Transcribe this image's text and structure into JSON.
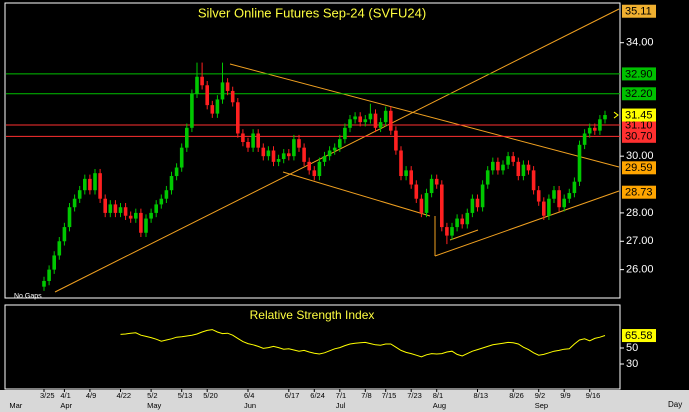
{
  "chart_data": {
    "type": "candlestick",
    "title": "Silver Online Futures Sep-24 (SVFU24)",
    "annotation": "No Gaps",
    "x_label": "Day",
    "categories": [
      null,
      null,
      null,
      null,
      null,
      null,
      "3/25",
      null,
      null,
      null,
      "4/1",
      null,
      null,
      null,
      null,
      "4/9",
      null,
      null,
      null,
      null,
      null,
      "4/22",
      null,
      null,
      null,
      null,
      null,
      "5/2",
      null,
      null,
      null,
      null,
      null,
      "5/13",
      null,
      null,
      null,
      null,
      "5/20",
      null,
      null,
      null,
      null,
      null,
      null,
      null,
      "6/4",
      null,
      null,
      null,
      null,
      null,
      null,
      null,
      "6/17",
      null,
      null,
      null,
      null,
      "6/24",
      null,
      null,
      null,
      null,
      "7/1",
      null,
      null,
      null,
      null,
      "7/8",
      null,
      null,
      null,
      "7/15",
      null,
      null,
      null,
      null,
      "7/23",
      null,
      null,
      null,
      null,
      "8/1",
      null,
      null,
      null,
      null,
      null,
      null,
      null,
      "8/13",
      null,
      null,
      null,
      null,
      null,
      null,
      "8/26",
      null,
      null,
      null,
      null,
      "9/2",
      null,
      null,
      null,
      null,
      "9/9",
      null,
      null,
      null,
      null,
      "9/16",
      null,
      null,
      null
    ],
    "months": [
      "Mar",
      null,
      null,
      null,
      null,
      null,
      null,
      null,
      null,
      null,
      "Apr",
      null,
      null,
      null,
      null,
      null,
      null,
      null,
      null,
      null,
      null,
      null,
      null,
      null,
      null,
      null,
      null,
      "May",
      null,
      null,
      null,
      null,
      null,
      null,
      null,
      null,
      null,
      null,
      null,
      null,
      null,
      null,
      null,
      null,
      null,
      null,
      "Jun",
      null,
      null,
      null,
      null,
      null,
      null,
      null,
      null,
      null,
      null,
      null,
      null,
      null,
      null,
      null,
      null,
      null,
      "Jul",
      null,
      null,
      null,
      null,
      null,
      null,
      null,
      null,
      null,
      null,
      null,
      null,
      null,
      null,
      null,
      null,
      null,
      null,
      "Aug",
      null,
      null,
      null,
      null,
      null,
      null,
      null,
      null,
      null,
      null,
      null,
      null,
      null,
      null,
      null,
      null,
      null,
      null,
      null,
      "Sep",
      null,
      null,
      null,
      null,
      null,
      null,
      null,
      null,
      null,
      null,
      null,
      null,
      null
    ],
    "open": [
      null,
      null,
      null,
      null,
      null,
      null,
      25.4,
      25.6,
      26.0,
      26.5,
      27.0,
      27.5,
      28.2,
      28.5,
      28.8,
      29.2,
      28.8,
      29.4,
      28.5,
      28.0,
      28.3,
      28.0,
      28.2,
      27.9,
      27.8,
      28.0,
      27.3,
      27.8,
      28.0,
      28.3,
      28.5,
      28.8,
      29.3,
      29.6,
      30.3,
      31.0,
      32.2,
      32.8,
      32.5,
      31.8,
      31.5,
      32.0,
      32.6,
      32.3,
      31.9,
      30.8,
      30.5,
      30.3,
      30.8,
      30.3,
      30.0,
      30.2,
      29.8,
      29.9,
      30.1,
      30.0,
      30.6,
      30.3,
      29.8,
      29.5,
      29.3,
      29.8,
      30.0,
      30.2,
      30.3,
      30.6,
      31.0,
      31.3,
      31.4,
      31.2,
      31.3,
      31.5,
      31.0,
      31.2,
      31.6,
      30.9,
      30.2,
      29.3,
      29.5,
      29.0,
      28.5,
      28.0,
      28.7,
      29.2,
      29.0,
      27.5,
      27.2,
      27.5,
      27.8,
      27.6,
      28.0,
      28.5,
      28.2,
      29.0,
      29.5,
      29.8,
      29.5,
      29.7,
      30.0,
      29.8,
      29.3,
      29.7,
      29.5,
      28.8,
      28.4,
      27.9,
      28.5,
      28.8,
      28.2,
      28.5,
      28.7,
      29.1,
      30.4,
      30.8,
      31.0,
      30.9,
      31.3
    ],
    "high": [
      null,
      null,
      null,
      null,
      null,
      null,
      25.75,
      26.15,
      26.65,
      27.15,
      27.65,
      28.35,
      28.65,
      28.95,
      29.35,
      29.35,
      29.55,
      29.55,
      28.65,
      28.45,
      28.45,
      28.35,
      28.35,
      28.05,
      28.15,
      28.15,
      27.95,
      28.15,
      28.45,
      28.65,
      28.95,
      29.45,
      29.75,
      30.45,
      31.15,
      32.35,
      33.3,
      33.3,
      32.65,
      31.95,
      32.15,
      33.3,
      32.75,
      32.45,
      32.05,
      30.95,
      30.65,
      30.95,
      30.95,
      30.45,
      30.35,
      30.35,
      30.05,
      30.25,
      30.25,
      30.75,
      30.75,
      30.45,
      29.95,
      29.65,
      29.95,
      30.15,
      30.35,
      30.45,
      30.75,
      31.15,
      31.45,
      31.55,
      31.55,
      31.45,
      31.85,
      31.65,
      31.35,
      31.75,
      31.75,
      31.05,
      30.35,
      29.65,
      29.65,
      29.15,
      28.65,
      28.85,
      29.35,
      29.35,
      29.15,
      27.65,
      27.65,
      27.95,
      27.95,
      28.15,
      28.65,
      28.65,
      29.15,
      29.65,
      29.95,
      29.95,
      29.85,
      30.15,
      30.15,
      29.95,
      29.85,
      29.85,
      29.65,
      28.95,
      28.55,
      28.65,
      28.95,
      28.95,
      28.65,
      28.85,
      29.25,
      30.55,
      30.95,
      31.15,
      31.15,
      31.45,
      31.6
    ],
    "low": [
      null,
      null,
      null,
      null,
      null,
      null,
      25.25,
      25.45,
      25.85,
      26.35,
      26.85,
      27.35,
      28.05,
      28.35,
      28.65,
      28.65,
      28.65,
      28.35,
      27.85,
      27.85,
      27.85,
      27.85,
      27.75,
      27.65,
      27.65,
      27.15,
      27.15,
      27.65,
      27.85,
      28.15,
      28.35,
      28.65,
      29.15,
      29.45,
      30.15,
      30.85,
      32.05,
      32.35,
      31.65,
      31.35,
      31.35,
      31.85,
      32.15,
      31.75,
      30.65,
      30.35,
      30.15,
      30.15,
      30.15,
      29.85,
      29.85,
      29.65,
      29.65,
      29.75,
      29.85,
      29.85,
      30.15,
      29.65,
      29.35,
      29.15,
      29.15,
      29.65,
      29.85,
      30.05,
      30.15,
      30.45,
      30.85,
      31.15,
      31.05,
      31.05,
      31.15,
      30.85,
      30.85,
      31.05,
      30.75,
      30.05,
      29.15,
      29.15,
      28.85,
      28.35,
      27.85,
      27.85,
      28.55,
      28.85,
      27.35,
      26.9,
      27.05,
      27.35,
      27.45,
      27.45,
      27.85,
      28.05,
      28.05,
      28.85,
      29.35,
      29.35,
      29.35,
      29.55,
      29.65,
      29.15,
      29.15,
      29.35,
      28.65,
      28.25,
      27.75,
      27.75,
      28.35,
      28.05,
      28.05,
      28.35,
      28.55,
      28.95,
      30.25,
      30.65,
      30.75,
      30.75,
      31.15
    ],
    "close": [
      null,
      null,
      null,
      null,
      null,
      null,
      25.6,
      26.0,
      26.5,
      27.0,
      27.5,
      28.2,
      28.5,
      28.8,
      29.2,
      28.8,
      29.4,
      28.5,
      28.0,
      28.3,
      28.0,
      28.2,
      27.9,
      27.8,
      28.0,
      27.3,
      27.8,
      28.0,
      28.3,
      28.5,
      28.8,
      29.3,
      29.6,
      30.3,
      31.0,
      32.2,
      32.8,
      32.5,
      31.8,
      31.5,
      32.0,
      32.6,
      32.3,
      31.9,
      30.8,
      30.5,
      30.3,
      30.8,
      30.3,
      30.0,
      30.2,
      29.8,
      29.9,
      30.1,
      30.0,
      30.6,
      30.3,
      29.8,
      29.5,
      29.3,
      29.8,
      30.0,
      30.2,
      30.3,
      30.6,
      31.0,
      31.3,
      31.4,
      31.2,
      31.3,
      31.5,
      31.0,
      31.2,
      31.6,
      30.9,
      30.2,
      29.3,
      29.5,
      29.0,
      28.5,
      28.0,
      28.7,
      29.2,
      29.0,
      27.5,
      27.2,
      27.5,
      27.8,
      27.6,
      28.0,
      28.5,
      28.2,
      29.0,
      29.5,
      29.8,
      29.5,
      29.7,
      30.0,
      29.8,
      29.3,
      29.7,
      29.5,
      28.8,
      28.4,
      27.9,
      28.5,
      28.8,
      28.2,
      28.5,
      28.7,
      29.1,
      30.4,
      30.8,
      31.0,
      30.9,
      31.3,
      31.45
    ],
    "up_color": "#00c800",
    "down_color": "#ff2020",
    "last_color": "#ffff00",
    "ylim": [
      25.0,
      35.4
    ],
    "yticks": [
      {
        "value": 26,
        "label": "26.00"
      },
      {
        "value": 27,
        "label": "27.00"
      },
      {
        "value": 28,
        "label": "28.00"
      },
      {
        "value": 30,
        "label": "30.00"
      },
      {
        "value": 34,
        "label": "34.00"
      }
    ],
    "price_labels": [
      {
        "value": 35.11,
        "label": "35.11",
        "color": "#f0b030",
        "line": false
      },
      {
        "value": 32.9,
        "label": "32.90",
        "color": "#00c000",
        "line": true
      },
      {
        "value": 32.2,
        "label": "32.20",
        "color": "#00c000",
        "line": true
      },
      {
        "value": 31.1,
        "label": "31.10",
        "color": "#ff3030",
        "line": true
      },
      {
        "value": 30.7,
        "label": "30.70",
        "color": "#ff3030",
        "line": true
      },
      {
        "value": 29.59,
        "label": "29.59",
        "color": "#ffa500",
        "line": false
      },
      {
        "value": 28.73,
        "label": "28.73",
        "color": "#ffa500",
        "line": false
      }
    ],
    "rsi": {
      "title": "Relative Strength Index",
      "color": "#ffff00",
      "ylim": [
        0,
        100
      ],
      "yticks": [
        30,
        50
      ],
      "values": [
        null,
        null,
        null,
        null,
        null,
        null,
        null,
        null,
        null,
        null,
        null,
        null,
        null,
        null,
        null,
        null,
        null,
        null,
        null,
        null,
        null,
        67,
        67.5,
        68.5,
        69,
        66,
        64.5,
        63,
        61,
        58.5,
        60,
        61.5,
        63.5,
        64,
        65,
        66,
        67.5,
        70,
        72,
        73,
        70,
        68,
        68.5,
        66,
        62,
        58,
        55.5,
        54,
        52,
        49.5,
        50.5,
        52,
        50.5,
        48.5,
        49,
        47.5,
        46,
        47,
        45,
        43.5,
        42.5,
        44,
        46.5,
        49,
        50.5,
        53,
        55,
        56,
        56.5,
        57,
        55.5,
        54,
        53.5,
        55,
        55,
        51,
        47,
        44.5,
        43,
        41,
        39,
        41.5,
        43,
        42.5,
        43,
        45,
        46,
        42,
        40,
        43,
        46,
        48,
        50,
        52,
        54,
        55,
        56,
        57,
        56.5,
        55,
        51,
        48,
        44,
        41,
        42,
        44,
        46,
        47,
        48.5,
        49,
        55,
        60,
        61.5,
        59,
        62,
        63.5,
        65.58
      ]
    }
  }
}
